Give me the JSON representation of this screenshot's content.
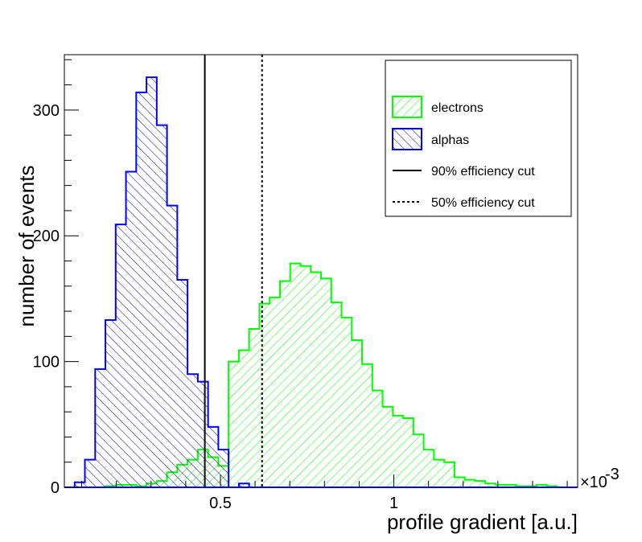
{
  "chart_data": {
    "type": "histogram",
    "title": "",
    "xlabel": "profile gradient [a.u.]",
    "ylabel": "number of events",
    "x_multiplier": "×10",
    "x_multiplier_exponent": "-3",
    "xlim": [
      0.05,
      1.53
    ],
    "ylim": [
      0,
      344
    ],
    "x_ticks": [
      0.5,
      1
    ],
    "x_tick_labels": [
      "0.5",
      "1"
    ],
    "y_ticks": [
      0,
      100,
      200,
      300
    ],
    "y_tick_labels": [
      "0",
      "100",
      "200",
      "300"
    ],
    "bin_start": 0.05,
    "bin_width": 0.0296,
    "series": [
      {
        "name": "electrons",
        "color": "#00ff00",
        "values": [
          0,
          0,
          0,
          0,
          1,
          2,
          2,
          1,
          3,
          5,
          12,
          18,
          22,
          30,
          24,
          17,
          100,
          109,
          126,
          146,
          151,
          164,
          178,
          176,
          171,
          166,
          147,
          135,
          117,
          98,
          77,
          64,
          57,
          55,
          42,
          30,
          22,
          20,
          8,
          6,
          5,
          3,
          2,
          2,
          1,
          1,
          2,
          1,
          0,
          0
        ]
      },
      {
        "name": "alphas",
        "color": "#0000ff",
        "values": [
          0,
          4,
          22,
          94,
          133,
          209,
          251,
          314,
          326,
          288,
          224,
          165,
          90,
          84,
          48,
          30,
          0,
          3,
          0,
          0,
          0,
          0,
          0,
          0,
          0,
          0,
          0,
          0,
          0,
          0,
          0,
          0,
          0,
          0,
          0,
          0,
          0,
          0,
          0,
          0,
          0,
          0,
          0,
          0,
          0,
          0,
          0,
          0,
          0,
          0
        ]
      }
    ],
    "cut_lines": [
      {
        "name": "90% efficiency cut",
        "x": 0.455,
        "style": "solid"
      },
      {
        "name": "50% efficiency cut",
        "x": 0.62,
        "style": "dotted"
      }
    ],
    "legend": {
      "position": "top-right",
      "entries": [
        {
          "label": "electrons",
          "kind": "hatched-box",
          "color": "#00ff00"
        },
        {
          "label": "alphas",
          "kind": "hatched-box",
          "color": "#0000ff"
        },
        {
          "label": "90% efficiency cut",
          "kind": "solid-line",
          "color": "#000000"
        },
        {
          "label": "50% efficiency cut",
          "kind": "dotted-line",
          "color": "#000000"
        }
      ]
    }
  }
}
